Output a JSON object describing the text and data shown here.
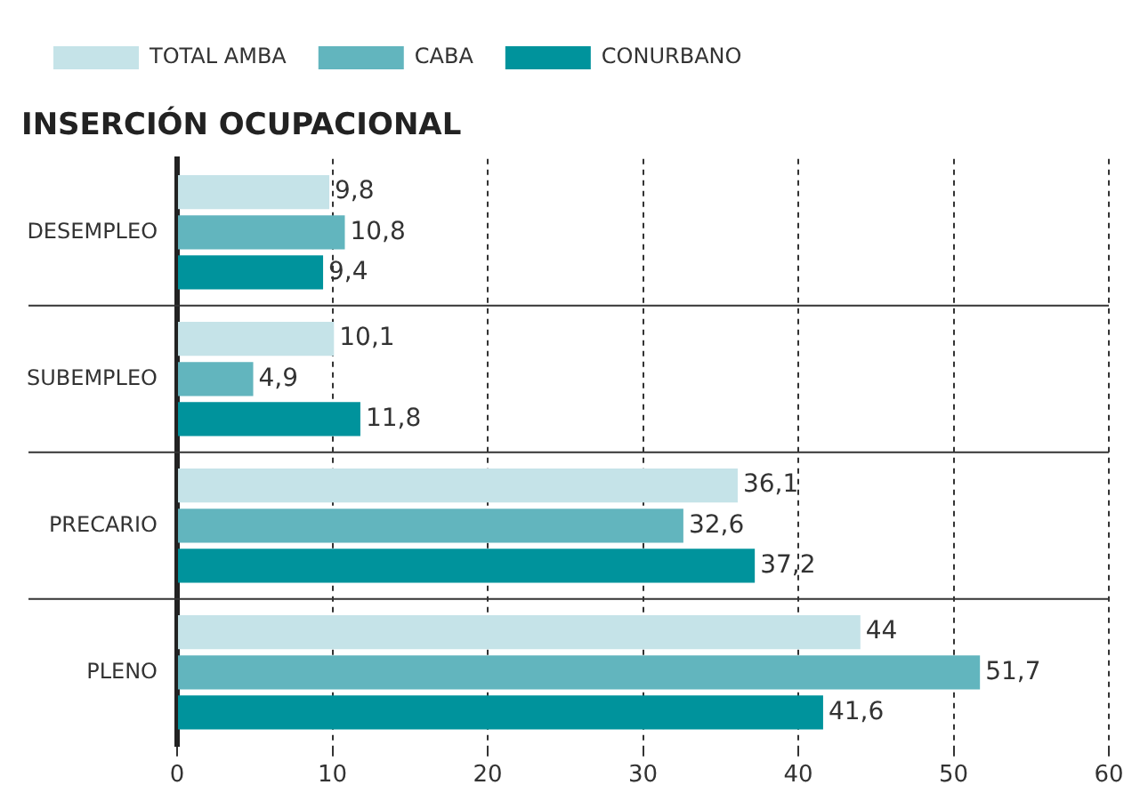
{
  "chart_data": {
    "type": "bar",
    "orientation": "horizontal",
    "title": "INSERCIÓN OCUPACIONAL",
    "categories": [
      "DESEMPLEO",
      "SUBEMPLEO",
      "PRECARIO",
      "PLENO"
    ],
    "series": [
      {
        "name": "TOTAL AMBA",
        "color": "#c5e3e8",
        "values": [
          9.8,
          10.1,
          36.1,
          44
        ],
        "value_labels": [
          "9,8",
          "10,1",
          "36,1",
          "44"
        ]
      },
      {
        "name": "CABA",
        "color": "#62b5be",
        "values": [
          10.8,
          4.9,
          32.6,
          51.7
        ],
        "value_labels": [
          "10,8",
          "4,9",
          "32,6",
          "51,7"
        ]
      },
      {
        "name": "CONURBANO",
        "color": "#00939c",
        "values": [
          9.4,
          11.8,
          37.2,
          41.6
        ],
        "value_labels": [
          "9,4",
          "11,8",
          "37,2",
          "41,6"
        ]
      }
    ],
    "xlim": [
      0,
      60
    ],
    "xticks": [
      0,
      10,
      20,
      30,
      40,
      50,
      60
    ],
    "grid": "x",
    "legend": "top left"
  }
}
